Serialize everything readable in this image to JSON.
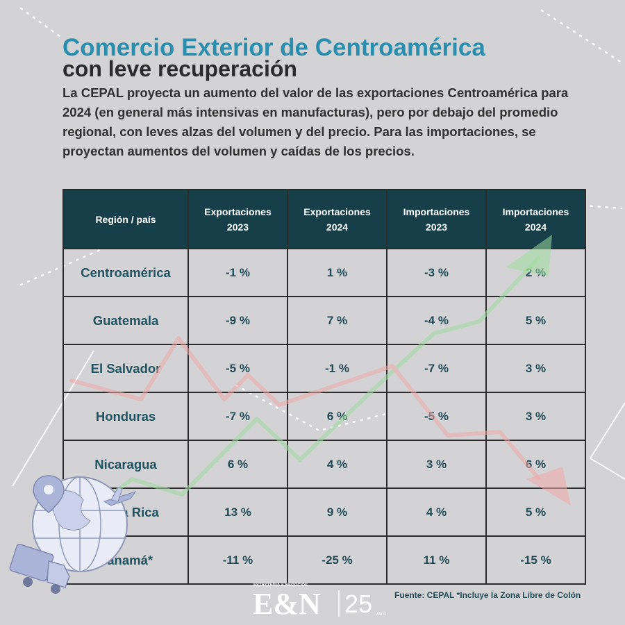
{
  "title_line1": "Comercio Exterior de Centroamérica",
  "title_line2": "con leve recuperación",
  "intro": "La CEPAL proyecta un aumento del valor de las exportaciones Centroamérica para 2024 (en general más intensivas en manufacturas), pero por debajo del promedio regional, con leves alzas del volumen y del precio. Para las importaciones, se proyectan aumentos del volumen y caídas de los precios.",
  "table": {
    "headers": [
      "Región / país",
      "Exportaciones 2023",
      "Exportaciones 2024",
      "Importaciones 2023",
      "Importaciones 2024"
    ],
    "rows": [
      [
        "Centroamérica",
        "-1 %",
        "1 %",
        "-3 %",
        "2 %"
      ],
      [
        "Guatemala",
        "-9 %",
        "7 %",
        "-4 %",
        "5 %"
      ],
      [
        "El Salvador",
        "-5 %",
        "-1 %",
        "-7 %",
        "3 %"
      ],
      [
        "Honduras",
        "-7 %",
        "6 %",
        "-5 %",
        "3 %"
      ],
      [
        "Nicaragua",
        "6 %",
        "4 %",
        "3 %",
        "6 %"
      ],
      [
        "Costa Rica",
        "13 %",
        "9 %",
        "4 %",
        "5 %"
      ],
      [
        "Panamá*",
        "-11 %",
        "-25 %",
        "11 %",
        "-15 %"
      ]
    ]
  },
  "source": "Fuente: CEPAL *Incluye la Zona Libre de Colón",
  "logo": {
    "brand": "E&N",
    "tagline": "ESTRATEGIA & NEGOCIOS",
    "anniversary": "25",
    "anniversary_suffix": "AÑOS"
  },
  "colors": {
    "accent": "#2a8fae",
    "header_bg": "#163f4a",
    "cell_text": "#1f4a56",
    "background": "#d3d3d6",
    "up_arrow": "#9fdc9f",
    "down_arrow": "#f0a8a8"
  },
  "icons": [
    "globe-icon",
    "truck-icon",
    "airplane-icon",
    "location-pin-icon",
    "up-arrow-line",
    "down-arrow-line"
  ]
}
